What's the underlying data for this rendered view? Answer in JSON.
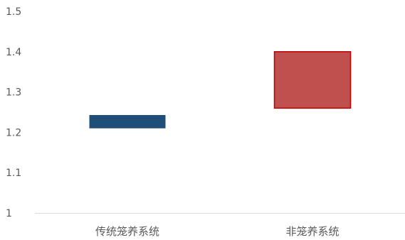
{
  "chart_data": {
    "type": "bar",
    "subtype": "floating-range",
    "title": "",
    "xlabel": "",
    "ylabel": "",
    "ylim": [
      1,
      1.5
    ],
    "yticks": [
      "1",
      "1.1",
      "1.2",
      "1.3",
      "1.4",
      "1.5"
    ],
    "grid": false,
    "categories": [
      "传统笼养系统",
      "非笼养系统"
    ],
    "ranges": [
      {
        "category": "传统笼养系统",
        "low": 1.21,
        "high": 1.243,
        "color": "#1f4e79"
      },
      {
        "category": "非笼养系统",
        "low": 1.26,
        "high": 1.4,
        "color": "#c0504d",
        "stroke": "#c00000"
      }
    ]
  },
  "colors": {
    "axis": "#d9d9d9",
    "text": "#595959"
  }
}
